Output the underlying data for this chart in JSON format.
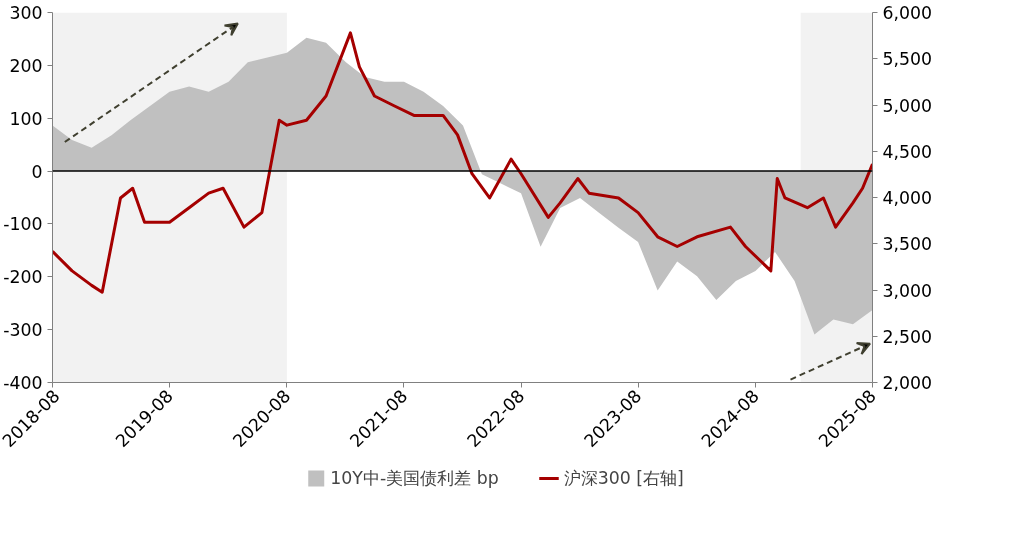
{
  "chart_data": {
    "type": "line",
    "series": [
      {
        "name": "10Y中-美国债利差 bp",
        "type": "area",
        "color": "#c0c0c0",
        "x": [
          "2018-08-01",
          "2018-10-01",
          "2018-12-01",
          "2019-02-01",
          "2019-04-01",
          "2019-06-01",
          "2019-08-01",
          "2019-10-01",
          "2019-12-01",
          "2020-02-01",
          "2020-04-01",
          "2020-06-01",
          "2020-08-01",
          "2020-10-01",
          "2020-12-01",
          "2021-02-01",
          "2021-04-01",
          "2021-06-01",
          "2021-08-01",
          "2021-10-01",
          "2021-12-01",
          "2022-02-01",
          "2022-04-01",
          "2022-06-01",
          "2022-08-01",
          "2022-10-01",
          "2022-12-01",
          "2023-02-01",
          "2023-04-01",
          "2023-06-01",
          "2023-08-01",
          "2023-10-01",
          "2023-12-01",
          "2024-02-01",
          "2024-04-01",
          "2024-06-01",
          "2024-08-01",
          "2024-10-01",
          "2024-12-01",
          "2025-02-01",
          "2025-04-01",
          "2025-06-01",
          "2025-08-01"
        ],
        "values": [
          86,
          59,
          44,
          68,
          96,
          123,
          150,
          160,
          150,
          169,
          206,
          215,
          224,
          252,
          243,
          206,
          178,
          169,
          169,
          150,
          123,
          86,
          -6,
          -24,
          -42,
          -143,
          -70,
          -51,
          -79,
          -107,
          -134,
          -226,
          -171,
          -199,
          -244,
          -208,
          -189,
          -153,
          -208,
          -309,
          -281,
          -290,
          -263
        ]
      },
      {
        "name": "沪深300 [右轴]",
        "axis": "y2",
        "color": "#a50000",
        "x": [
          "2018-08-01",
          "2018-10-01",
          "2018-12-01",
          "2019-01-03",
          "2019-03-01",
          "2019-04-08",
          "2019-05-15",
          "2019-08-01",
          "2019-10-01",
          "2019-12-01",
          "2020-01-15",
          "2020-03-20",
          "2020-05-15",
          "2020-07-08",
          "2020-08-01",
          "2020-10-01",
          "2020-12-01",
          "2021-02-15",
          "2021-03-15",
          "2021-05-01",
          "2021-07-01",
          "2021-09-01",
          "2021-12-01",
          "2022-01-15",
          "2022-03-01",
          "2022-04-25",
          "2022-07-01",
          "2022-08-01",
          "2022-10-25",
          "2022-12-01",
          "2023-01-25",
          "2023-03-01",
          "2023-06-01",
          "2023-08-01",
          "2023-10-01",
          "2023-12-01",
          "2024-02-01",
          "2024-05-15",
          "2024-07-01",
          "2024-09-18",
          "2024-10-08",
          "2024-11-01",
          "2025-01-10",
          "2025-03-01",
          "2025-04-08",
          "2025-06-01",
          "2025-07-01",
          "2025-08-01"
        ],
        "values": [
          3417,
          3207,
          3050,
          2976,
          3995,
          4100,
          3732,
          3732,
          3890,
          4047,
          4100,
          3680,
          3837,
          4835,
          4782,
          4835,
          5097,
          5780,
          5412,
          5097,
          4992,
          4887,
          4887,
          4677,
          4257,
          3995,
          4415,
          4257,
          3785,
          3942,
          4205,
          4047,
          3995,
          3837,
          3575,
          3470,
          3575,
          3680,
          3470,
          3207,
          4205,
          3995,
          3890,
          3995,
          3680,
          3942,
          4100,
          4362
        ]
      }
    ],
    "xlim": [
      "2018-08-01",
      "2025-08-01"
    ],
    "xticks": [
      {
        "value": "2018-08-01",
        "label": "2018-08"
      },
      {
        "value": "2019-08-01",
        "label": "2019-08"
      },
      {
        "value": "2020-08-01",
        "label": "2020-08"
      },
      {
        "value": "2021-08-01",
        "label": "2021-08"
      },
      {
        "value": "2022-08-01",
        "label": "2022-08"
      },
      {
        "value": "2023-08-01",
        "label": "2023-08"
      },
      {
        "value": "2024-08-01",
        "label": "2024-08"
      },
      {
        "value": "2025-08-01",
        "label": "2025-08"
      }
    ],
    "ylim": [
      -400,
      300
    ],
    "yticks": [
      -400,
      -300,
      -200,
      -100,
      0,
      100,
      200,
      300
    ],
    "y2lim": [
      2000,
      6000
    ],
    "y2ticks": [
      {
        "value": 2000,
        "label": "2,000"
      },
      {
        "value": 2500,
        "label": "2,500"
      },
      {
        "value": 3000,
        "label": "3,000"
      },
      {
        "value": 3500,
        "label": "3,500"
      },
      {
        "value": 4000,
        "label": "4,000"
      },
      {
        "value": 4500,
        "label": "4,500"
      },
      {
        "value": 5000,
        "label": "5,000"
      },
      {
        "value": 5500,
        "label": "5,500"
      },
      {
        "value": 6000,
        "label": "6,000"
      }
    ],
    "bands": [
      {
        "axis": "x",
        "from": "2018-08-01",
        "to": "2020-08-01",
        "color": "#f2f2f2"
      },
      {
        "axis": "x",
        "from": "2024-12-20",
        "to": "2025-08-01",
        "color": "#f2f2f2"
      }
    ],
    "ref_lines": [
      {
        "axis": "y",
        "value": 0,
        "color": "#000000",
        "line_style": "solid"
      }
    ],
    "grid": false,
    "legend": "bottom",
    "marker": "none",
    "line_style": "solid"
  }
}
